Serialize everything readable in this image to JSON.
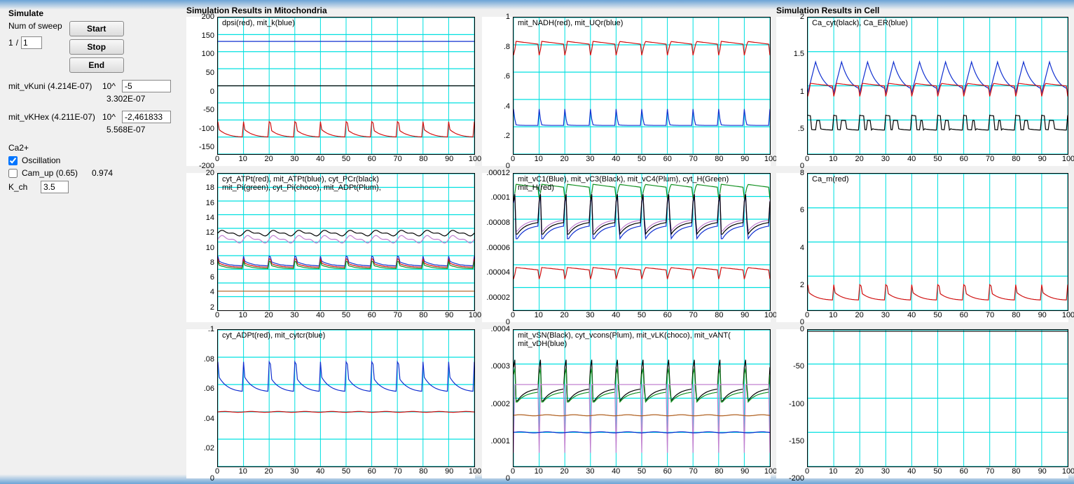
{
  "sidebar": {
    "title": "Simulate",
    "sweep_label": "Num of sweep",
    "sweep_current": "1",
    "sweep_sep": "/",
    "sweep_total": "1",
    "btn_start": "Start",
    "btn_stop": "Stop",
    "btn_end": "End",
    "param1_name": "mit_vKuni (4.214E-07)",
    "param1_exp_prefix": "10^",
    "param1_val": "-5",
    "param1_sub": "3.302E-07",
    "param2_name": "mit_vKHex (4.211E-07)",
    "param2_exp_prefix": "10^",
    "param2_val": "-2,461833",
    "param2_sub": "5.568E-07",
    "ca_title": "Ca2+",
    "oscillation_label": "Oscillation",
    "oscillation_checked": true,
    "camup_label": "Cam_up (0.65)",
    "camup_checked": false,
    "camup_val": "0.974",
    "kch_label": "K_ch",
    "kch_val": "3.5"
  },
  "section_mito_title": "Simulation Results in Mitochondria",
  "section_cell_title": "Simulation Results in Cell",
  "x_ticks": [
    0,
    10,
    20,
    30,
    40,
    50,
    60,
    70,
    80,
    90,
    100
  ],
  "colors": {
    "red": "#d01010",
    "blue": "#1030d0",
    "black": "#000000",
    "green": "#109020",
    "plum": "#c080d0",
    "choco": "#b06020",
    "grid": "#00e0e0",
    "cyan": "#00e0e0"
  },
  "charts": {
    "c11": {
      "legend": "dpsi(red), mit_k(blue)",
      "ylim": [
        -200,
        200
      ],
      "yticks": [
        -200,
        -150,
        -100,
        -50,
        0,
        50,
        100,
        150,
        200
      ],
      "series": [
        {
          "color": "blue",
          "wave": "flat",
          "base": 130,
          "amp": 0
        },
        {
          "color": "black",
          "wave": "flat",
          "base": 0,
          "amp": 0
        },
        {
          "color": "red",
          "wave": "sawtooth",
          "base": -150,
          "amp": 25,
          "periods": 10
        }
      ]
    },
    "c12": {
      "legend": "mit_NADH(red), mit_UQr(blue)",
      "ylim": [
        0,
        1
      ],
      "yticks": [
        0,
        0.2,
        0.4,
        0.6,
        0.8,
        1
      ],
      "ytick_labels": [
        "0",
        ".2",
        ".4",
        ".6",
        ".8",
        "1"
      ],
      "series": [
        {
          "color": "red",
          "wave": "relax",
          "base": 0.78,
          "amp": 0.08,
          "periods": 10
        },
        {
          "color": "blue",
          "wave": "spike",
          "base": 0.21,
          "amp": 0.12,
          "periods": 10
        }
      ]
    },
    "c13": {
      "legend": "Ca_cyt(black), Ca_ER(blue)",
      "ylim": [
        0,
        2
      ],
      "yticks": [
        0,
        0.5,
        1,
        1.5,
        2
      ],
      "ytick_labels": [
        "0",
        ".5",
        "1",
        "1.5",
        "2"
      ],
      "series": [
        {
          "color": "blue",
          "wave": "sawup",
          "base": 0.9,
          "amp": 0.45,
          "periods": 10
        },
        {
          "color": "red",
          "wave": "relax",
          "base": 0.95,
          "amp": 0.15,
          "periods": 10
        },
        {
          "color": "black",
          "wave": "double",
          "base": 0.35,
          "amp": 0.2,
          "periods": 10
        }
      ]
    },
    "c21": {
      "legend": "cyt_ATPt(red), mit_ATPt(blue), cyt_PCr(black)\nmit_Pi(green), cyt_Pi(choco), mit_ADPt(Plum),",
      "ylim": [
        0,
        20
      ],
      "yticks": [
        2,
        4,
        6,
        8,
        10,
        12,
        14,
        16,
        18,
        20
      ],
      "series": [
        {
          "color": "black",
          "wave": "wavy",
          "base": 11.3,
          "amp": 0.6,
          "periods": 10
        },
        {
          "color": "plum",
          "wave": "wavy",
          "base": 10.4,
          "amp": 0.8,
          "periods": 10
        },
        {
          "color": "blue",
          "wave": "sawtooth",
          "base": 6.5,
          "amp": 0.8,
          "periods": 10
        },
        {
          "color": "red",
          "wave": "sawtooth",
          "base": 6.3,
          "amp": 0.7,
          "periods": 10
        },
        {
          "color": "green",
          "wave": "sawtooth",
          "base": 6.1,
          "amp": 0.6,
          "periods": 10
        },
        {
          "color": "choco",
          "wave": "flat",
          "base": 2.8,
          "amp": 0
        }
      ]
    },
    "c22": {
      "legend": "mit_vC1(Blue), mit_vC3(Black), mit_vC4(Plum), cyt_H(Green)\nmit_H(red)",
      "ylim": [
        0,
        0.00012
      ],
      "yticks": [
        0,
        2e-05,
        4e-05,
        6e-05,
        8e-05,
        0.0001,
        0.00012
      ],
      "ytick_labels": [
        "0",
        ".00002",
        ".00004",
        ".00006",
        ".00008",
        ".0001",
        ".00012"
      ],
      "series": [
        {
          "color": "green",
          "wave": "relax",
          "base": 0.000105,
          "amp": 1e-05,
          "periods": 10
        },
        {
          "color": "blue",
          "wave": "spike2",
          "base": 7.5e-05,
          "amp": 3.5e-05,
          "periods": 10
        },
        {
          "color": "plum",
          "wave": "spike2",
          "base": 8e-05,
          "amp": 3e-05,
          "periods": 10
        },
        {
          "color": "black",
          "wave": "spike2",
          "base": 7.8e-05,
          "amp": 3.2e-05,
          "periods": 10
        },
        {
          "color": "red",
          "wave": "relax",
          "base": 3.3e-05,
          "amp": 8e-06,
          "periods": 10
        }
      ]
    },
    "c23": {
      "legend": "Ca_m(red)",
      "ylim": [
        0,
        8
      ],
      "yticks": [
        0,
        2,
        4,
        6,
        8
      ],
      "series": [
        {
          "color": "red",
          "wave": "sawtooth",
          "base": 0.6,
          "amp": 0.5,
          "periods": 10
        }
      ]
    },
    "c31": {
      "legend": "cyt_ADPt(red), mit_cytcr(blue)",
      "ylim": [
        0,
        0.1
      ],
      "yticks": [
        0,
        0.02,
        0.04,
        0.06,
        0.08,
        0.1
      ],
      "ytick_labels": [
        "0",
        ".02",
        ".04",
        ".06",
        ".08",
        ".1"
      ],
      "series": [
        {
          "color": "blue",
          "wave": "sawtooth",
          "base": 0.055,
          "amp": 0.012,
          "periods": 10
        },
        {
          "color": "red",
          "wave": "flat",
          "base": 0.04,
          "amp": 0.001
        }
      ]
    },
    "c32": {
      "legend": "mit_vSN(Black), cyt_vcons(Plum), mit_vLK(choco), mit_vANT(\nmit_vDH(blue)",
      "ylim": [
        0,
        0.0004
      ],
      "yticks": [
        0,
        0.0001,
        0.0002,
        0.0003,
        0.0004
      ],
      "ytick_labels": [
        "0",
        ".0001",
        ".0002",
        ".0003",
        ".0004"
      ],
      "series": [
        {
          "color": "black",
          "wave": "spike2",
          "base": 0.00023,
          "amp": 0.00011,
          "periods": 10
        },
        {
          "color": "green",
          "wave": "spike2",
          "base": 0.00022,
          "amp": 9e-05,
          "periods": 10
        },
        {
          "color": "plum",
          "wave": "spikedown",
          "base": 0.00022,
          "amp": 0.0002,
          "periods": 10
        },
        {
          "color": "choco",
          "wave": "flat",
          "base": 0.00015,
          "amp": 5e-06
        },
        {
          "color": "blue",
          "wave": "flat",
          "base": 0.0001,
          "amp": 5e-06
        }
      ]
    },
    "c33": {
      "legend": "",
      "ylim": [
        -200,
        0
      ],
      "yticks": [
        -200,
        -150,
        -100,
        -50,
        0
      ],
      "ytick_labels": [
        "-200",
        "-150",
        "-100",
        "-50",
        "0"
      ],
      "series": [
        {
          "color": "black",
          "wave": "flat",
          "base": -2,
          "amp": 0
        }
      ]
    }
  }
}
